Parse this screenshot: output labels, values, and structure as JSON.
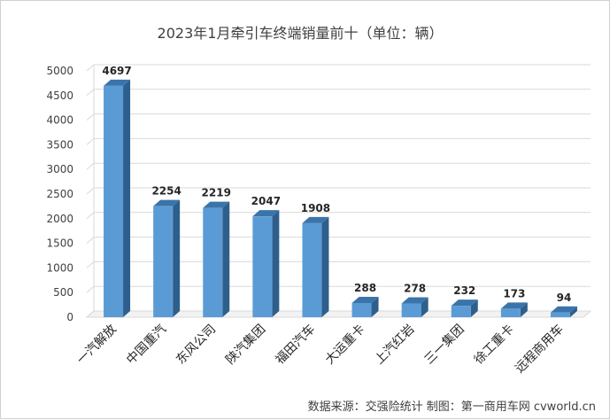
{
  "chart_data": {
    "type": "bar",
    "title": "2023年1月牵引车终端销量前十（单位：辆）",
    "categories": [
      "一汽解放",
      "中国重汽",
      "东风公司",
      "陕汽集团",
      "福田汽车",
      "大运重卡",
      "上汽红岩",
      "三一集团",
      "徐工重卡",
      "远程商用车"
    ],
    "values": [
      4697,
      2254,
      2219,
      2047,
      1908,
      288,
      278,
      232,
      173,
      94
    ],
    "yticks": [
      0,
      500,
      1000,
      1500,
      2000,
      2500,
      3000,
      3500,
      4000,
      4500,
      5000
    ],
    "ylim": [
      0,
      5000
    ],
    "xlabel": "",
    "ylabel": "",
    "grid": true,
    "bar_color": "#5b9bd5",
    "bar_side_color": "#2e5f8c",
    "bar_top_color": "#3a74aa"
  },
  "footer": {
    "source": "数据来源：交强险统计    制图：第一商用车网 cvworld.cn"
  }
}
